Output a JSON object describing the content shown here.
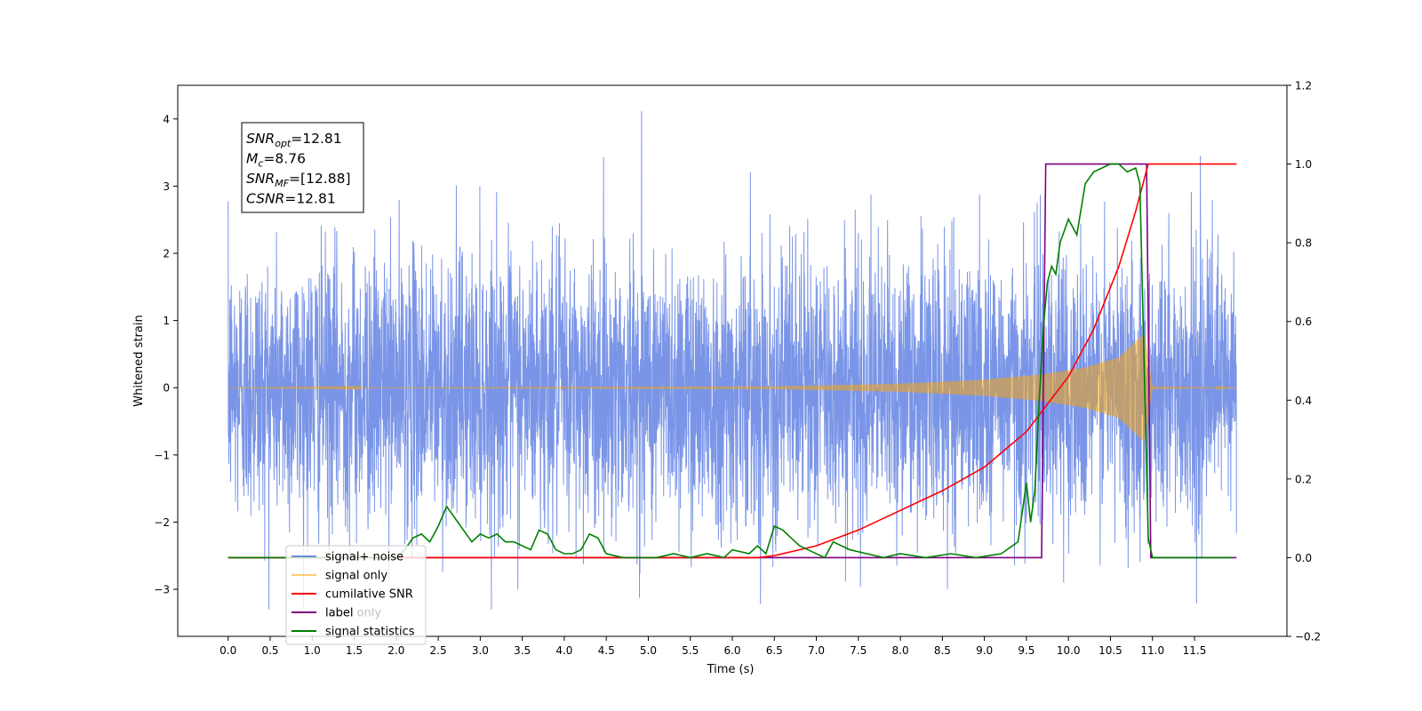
{
  "chart_data": {
    "type": "line",
    "title": "",
    "xlabel": "Time (s)",
    "ylabel": "Whitened strain",
    "xlim": [
      -0.6,
      12.6
    ],
    "ylim": [
      -3.7,
      4.5
    ],
    "y2lim": [
      -0.2,
      1.2
    ],
    "x_ticks": [
      "0.0",
      "0.5",
      "1.0",
      "1.5",
      "2.0",
      "2.5",
      "3.0",
      "3.5",
      "4.0",
      "4.5",
      "5.0",
      "5.5",
      "6.0",
      "6.5",
      "7.0",
      "7.5",
      "8.0",
      "8.5",
      "9.0",
      "9.5",
      "10.0",
      "10.5",
      "11.0",
      "11.5"
    ],
    "y_ticks": [
      -3,
      -2,
      -1,
      0,
      1,
      2,
      3,
      4
    ],
    "y_tick_labels": [
      "−3",
      "−2",
      "−1",
      "0",
      "1",
      "2",
      "3",
      "4"
    ],
    "y2_ticks": [
      "−0.2",
      "0.0",
      "0.2",
      "0.4",
      "0.6",
      "0.8",
      "1.0",
      "1.2"
    ],
    "y2_tick_values": [
      -0.2,
      0.0,
      0.2,
      0.4,
      0.6,
      0.8,
      1.0,
      1.2
    ],
    "grid": false,
    "legend_position": "lower-left",
    "annotation": {
      "lines": [
        {
          "base": "SNR",
          "sub": "opt",
          "rest": "=12.81"
        },
        {
          "base": "M",
          "sub": "c",
          "rest": "=8.76"
        },
        {
          "base": "SNR",
          "sub": "MF",
          "rest": "=[12.88]"
        },
        {
          "base": "CSNR",
          "sub": "",
          "rest": "=12.81"
        }
      ]
    },
    "signal_noise": {
      "x_range": [
        0.0,
        12.0
      ],
      "sigma": 1.0,
      "y_min": -3.3,
      "y_max": 4.12,
      "peak_x": 4.92
    },
    "signal_only": {
      "x_range": [
        0.0,
        12.0
      ],
      "envelope": [
        [
          0.0,
          0.0
        ],
        [
          6.5,
          0.02
        ],
        [
          8.0,
          0.06
        ],
        [
          9.0,
          0.12
        ],
        [
          9.7,
          0.2
        ],
        [
          10.2,
          0.3
        ],
        [
          10.6,
          0.45
        ],
        [
          10.9,
          0.8
        ],
        [
          11.0,
          0.02
        ],
        [
          12.0,
          0.0
        ]
      ]
    },
    "series": [
      {
        "name": "signal+ noise",
        "color": "#6c8ae4",
        "axis": "left"
      },
      {
        "name": "signal only",
        "color": "#ffa500",
        "axis": "left"
      },
      {
        "name": "cumilative SNR",
        "color": "#ff0000",
        "axis": "right",
        "x": [
          0.0,
          6.3,
          6.5,
          7.0,
          7.5,
          8.0,
          8.5,
          9.0,
          9.5,
          10.0,
          10.3,
          10.6,
          10.8,
          10.9,
          10.95,
          12.0
        ],
        "y": [
          0.0,
          0.0,
          0.005,
          0.03,
          0.07,
          0.12,
          0.17,
          0.23,
          0.32,
          0.46,
          0.58,
          0.74,
          0.88,
          0.96,
          1.0,
          1.0
        ]
      },
      {
        "name": "label",
        "color": "#800080",
        "axis": "right",
        "x": [
          0.0,
          9.68,
          9.73,
          10.93,
          10.98,
          12.0
        ],
        "y": [
          0.0,
          0.0,
          1.0,
          1.0,
          0.0,
          0.0
        ]
      },
      {
        "name": "signal statistics",
        "color": "#008000",
        "axis": "right",
        "x": [
          0.0,
          2.0,
          2.1,
          2.2,
          2.3,
          2.4,
          2.5,
          2.6,
          2.7,
          2.8,
          2.9,
          3.0,
          3.1,
          3.2,
          3.3,
          3.4,
          3.5,
          3.6,
          3.7,
          3.8,
          3.9,
          4.0,
          4.1,
          4.2,
          4.3,
          4.4,
          4.5,
          4.7,
          4.9,
          5.1,
          5.3,
          5.5,
          5.7,
          5.9,
          6.0,
          6.2,
          6.3,
          6.4,
          6.5,
          6.6,
          6.8,
          6.9,
          7.1,
          7.2,
          7.4,
          7.6,
          7.8,
          8.0,
          8.3,
          8.6,
          8.9,
          9.2,
          9.4,
          9.5,
          9.55,
          9.6,
          9.65,
          9.7,
          9.75,
          9.8,
          9.85,
          9.9,
          10.0,
          10.1,
          10.2,
          10.3,
          10.4,
          10.5,
          10.6,
          10.7,
          10.8,
          10.85,
          10.9,
          10.95,
          11.0,
          11.1,
          11.6,
          11.95
        ],
        "y": [
          0.0,
          0.0,
          0.02,
          0.05,
          0.06,
          0.04,
          0.08,
          0.13,
          0.1,
          0.07,
          0.04,
          0.06,
          0.05,
          0.06,
          0.04,
          0.04,
          0.03,
          0.02,
          0.07,
          0.06,
          0.02,
          0.01,
          0.01,
          0.02,
          0.06,
          0.05,
          0.01,
          0.0,
          0.0,
          0.0,
          0.01,
          0.0,
          0.01,
          0.0,
          0.02,
          0.01,
          0.03,
          0.01,
          0.08,
          0.07,
          0.03,
          0.02,
          0.0,
          0.04,
          0.02,
          0.01,
          0.0,
          0.01,
          0.0,
          0.01,
          0.0,
          0.01,
          0.04,
          0.19,
          0.09,
          0.17,
          0.39,
          0.58,
          0.7,
          0.74,
          0.72,
          0.8,
          0.86,
          0.82,
          0.95,
          0.98,
          0.99,
          1.0,
          1.0,
          0.98,
          0.99,
          0.95,
          0.5,
          0.05,
          0.0,
          0.0,
          0.0,
          0.0
        ]
      }
    ],
    "legend": [
      "signal+ noise",
      "signal only",
      "cumilative SNR",
      "label",
      "signal statistics"
    ],
    "legend_overlay": "label only"
  }
}
